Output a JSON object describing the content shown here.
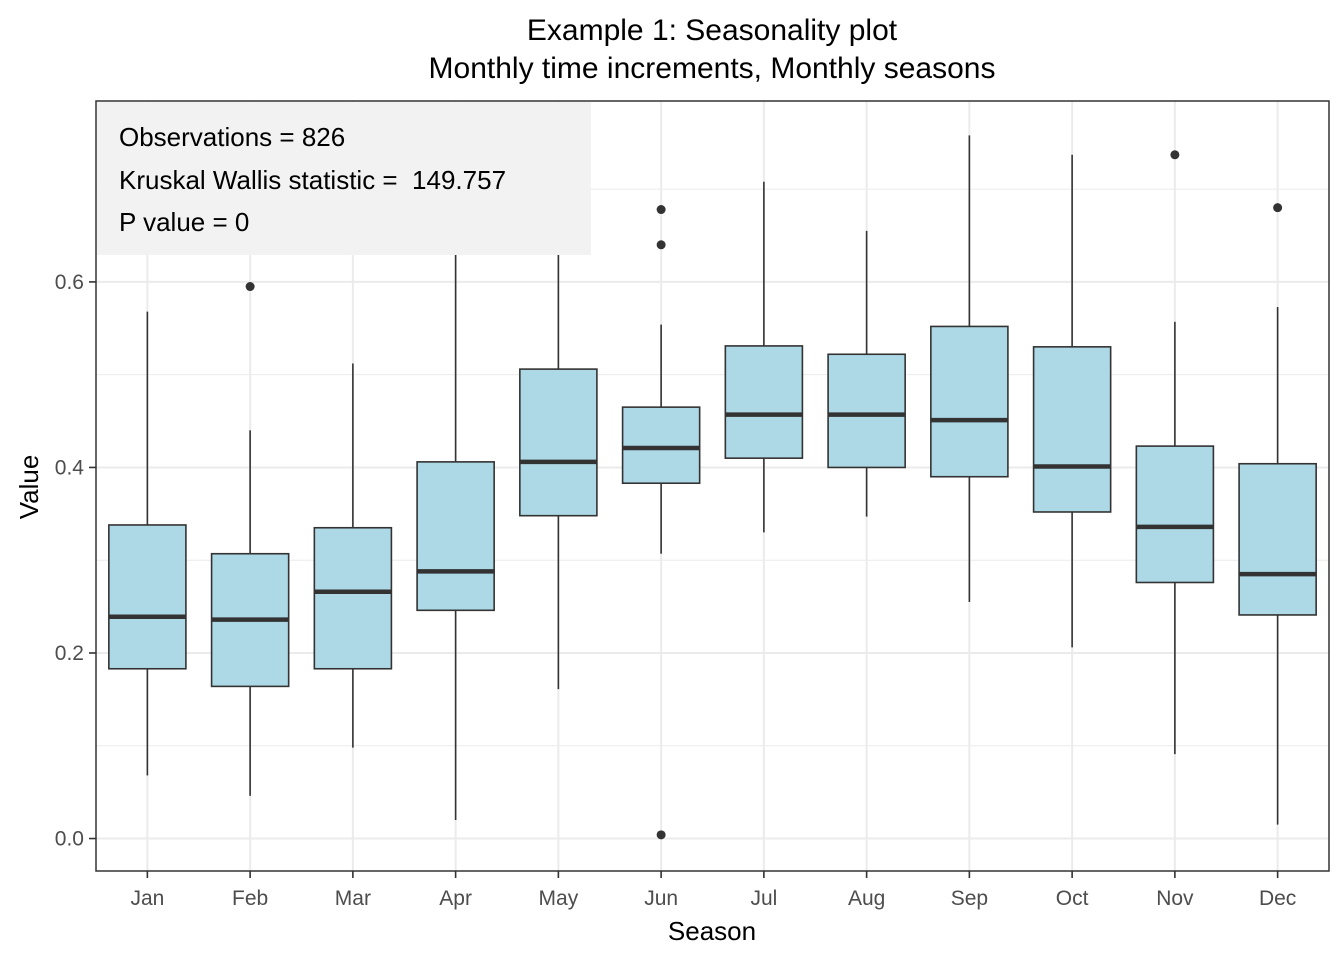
{
  "chart_data": {
    "type": "boxplot",
    "title": "Example 1: Seasonality plot",
    "subtitle": "Monthly time increments, Monthly seasons",
    "xlabel": "Season",
    "ylabel": "Value",
    "ylim": [
      -0.035,
      0.795
    ],
    "y_ticks": [
      0.0,
      0.2,
      0.4,
      0.6
    ],
    "y_tick_labels": [
      "0.0",
      "0.2",
      "0.4",
      "0.6"
    ],
    "grid": true,
    "box_fill": "#add8e6",
    "line_color": "#333333",
    "panel_border": "#333333",
    "grid_color": "#ebebeb",
    "annotation_fill": "#f2f2f2",
    "annotation": {
      "observations": "Observations = 826",
      "kruskal": "Kruskal Wallis statistic =  149.757",
      "p_value": "P value = 0"
    },
    "categories": [
      "Jan",
      "Feb",
      "Mar",
      "Apr",
      "May",
      "Jun",
      "Jul",
      "Aug",
      "Sep",
      "Oct",
      "Nov",
      "Dec"
    ],
    "boxes": [
      {
        "category": "Jan",
        "whisker_low": 0.068,
        "q1": 0.183,
        "median": 0.239,
        "q3": 0.338,
        "whisker_high": 0.568,
        "outliers": []
      },
      {
        "category": "Feb",
        "whisker_low": 0.046,
        "q1": 0.164,
        "median": 0.236,
        "q3": 0.307,
        "whisker_high": 0.44,
        "outliers": [
          0.595
        ]
      },
      {
        "category": "Mar",
        "whisker_low": 0.098,
        "q1": 0.183,
        "median": 0.266,
        "q3": 0.335,
        "whisker_high": 0.512,
        "outliers": []
      },
      {
        "category": "Apr",
        "whisker_low": 0.02,
        "q1": 0.246,
        "median": 0.288,
        "q3": 0.406,
        "whisker_high": 0.63,
        "outliers": []
      },
      {
        "category": "May",
        "whisker_low": 0.161,
        "q1": 0.348,
        "median": 0.406,
        "q3": 0.506,
        "whisker_high": 0.63,
        "outliers": []
      },
      {
        "category": "Jun",
        "whisker_low": 0.307,
        "q1": 0.383,
        "median": 0.421,
        "q3": 0.465,
        "whisker_high": 0.554,
        "outliers": [
          0.004,
          0.64,
          0.678
        ]
      },
      {
        "category": "Jul",
        "whisker_low": 0.33,
        "q1": 0.41,
        "median": 0.457,
        "q3": 0.531,
        "whisker_high": 0.708,
        "outliers": []
      },
      {
        "category": "Aug",
        "whisker_low": 0.347,
        "q1": 0.4,
        "median": 0.457,
        "q3": 0.522,
        "whisker_high": 0.655,
        "outliers": []
      },
      {
        "category": "Sep",
        "whisker_low": 0.255,
        "q1": 0.39,
        "median": 0.451,
        "q3": 0.552,
        "whisker_high": 0.758,
        "outliers": []
      },
      {
        "category": "Oct",
        "whisker_low": 0.206,
        "q1": 0.352,
        "median": 0.401,
        "q3": 0.53,
        "whisker_high": 0.737,
        "outliers": []
      },
      {
        "category": "Nov",
        "whisker_low": 0.091,
        "q1": 0.276,
        "median": 0.336,
        "q3": 0.423,
        "whisker_high": 0.557,
        "outliers": [
          0.737
        ]
      },
      {
        "category": "Dec",
        "whisker_low": 0.015,
        "q1": 0.241,
        "median": 0.285,
        "q3": 0.404,
        "whisker_high": 0.573,
        "outliers": [
          0.68
        ]
      }
    ]
  }
}
